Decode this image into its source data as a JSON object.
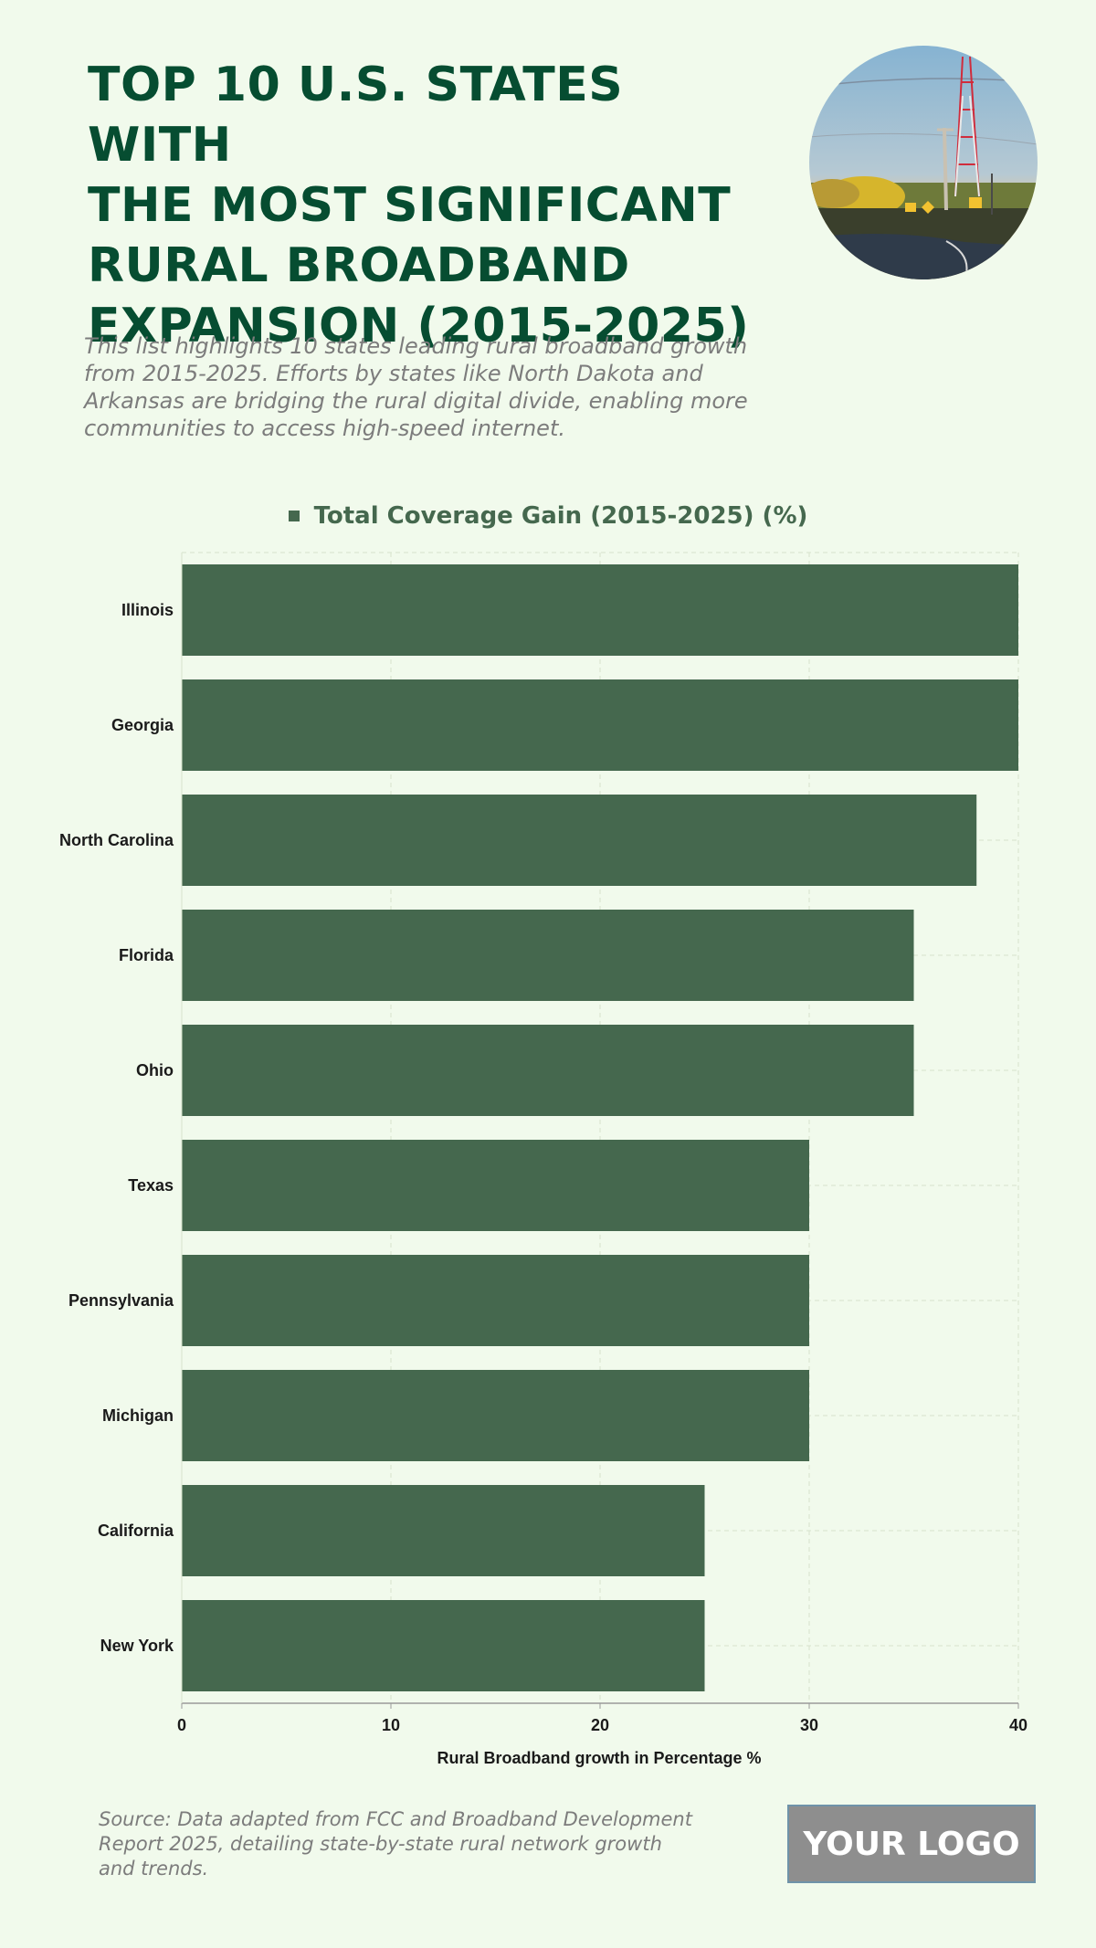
{
  "header": {
    "title_lines": [
      "TOP 10 U.S. STATES WITH",
      "THE MOST SIGNIFICANT",
      "RURAL BROADBAND",
      "EXPANSION (2015-2025)"
    ],
    "subtitle": "This list highlights 10 states leading rural broadband growth from 2015-2025. Efforts by states like North Dakota and Arkansas are bridging the rural digital divide, enabling more communities to access high-speed internet."
  },
  "chart_data": {
    "type": "bar",
    "orientation": "horizontal",
    "categories": [
      "Illinois",
      "Georgia",
      "North Carolina",
      "Florida",
      "Ohio",
      "Texas",
      "Pennsylvania",
      "Michigan",
      "California",
      "New York"
    ],
    "series": [
      {
        "name": "Total Coverage Gain (2015-2025) (%)",
        "values": [
          40,
          40,
          38,
          35,
          35,
          30,
          30,
          30,
          25,
          25
        ]
      }
    ],
    "xlabel": "Rural Broadband growth in Percentage %",
    "ylabel": "",
    "xlim": [
      0,
      40
    ],
    "xticks": [
      0,
      10,
      20,
      30,
      40
    ],
    "grid": true,
    "legend_position": "top-center",
    "bar_color": "#45684e"
  },
  "footer": {
    "source": "Source: Data adapted from FCC and Broadband Development Report 2025, detailing state-by-state rural network growth and trends.",
    "logo_text": "YOUR LOGO"
  }
}
